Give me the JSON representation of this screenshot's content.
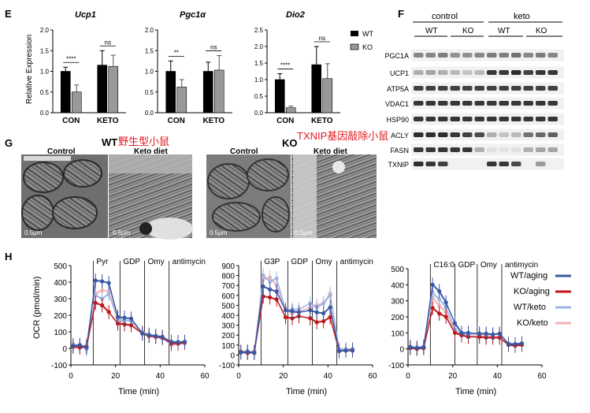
{
  "panel_labels": {
    "E": "E",
    "F": "F",
    "G": "G",
    "H": "H"
  },
  "colors": {
    "wt_bar": "#000000",
    "ko_bar": "#999999",
    "wt_aging": "#3a57a3",
    "ko_aging": "#c0161b",
    "wt_keto": "#9fb5e3",
    "ko_keto": "#f2b3b6",
    "annotation_red": "#e0191e"
  },
  "panel_e": {
    "ylabel": "Relative Expression",
    "legend": [
      "WT",
      "KO"
    ]
  },
  "panel_f": {
    "groups": [
      "control",
      "keto"
    ],
    "subgroups": [
      "WT",
      "KO",
      "WT",
      "KO"
    ],
    "proteins": [
      "PGC1A",
      "UCP1",
      "ATP5A",
      "VDAC1",
      "HSP90",
      "ACLY",
      "FASN",
      "TXNIP"
    ]
  },
  "panel_g": {
    "left": {
      "wt_label": "WT",
      "annotation": "野生型小鼠",
      "tiles": [
        "Control",
        "Keto diet"
      ]
    },
    "right": {
      "ko_label": "KO",
      "annotation": "TXNIP基因敲除小鼠",
      "tiles": [
        "Control",
        "Keto diet"
      ]
    },
    "scale": "0.5μm"
  },
  "panel_h": {
    "ylabel": "OCR (pmol/min)",
    "xlabel": "Time (min)",
    "legend": [
      "WT/aging",
      "KO/aging",
      "WT/keto",
      "KO/keto"
    ]
  },
  "chart_data": [
    {
      "type": "bar",
      "title": "Ucp1",
      "categories": [
        "CON",
        "KETO"
      ],
      "ylim": [
        0,
        2.0
      ],
      "yticks": [
        0,
        0.5,
        1.0,
        1.5,
        2.0
      ],
      "ytick_labels": [
        "0.0",
        "0.5",
        "1.0",
        "1.5",
        "2.0"
      ],
      "series": [
        {
          "name": "WT",
          "values": [
            1.0,
            1.15
          ],
          "errors": [
            0.1,
            0.35
          ]
        },
        {
          "name": "KO",
          "values": [
            0.5,
            1.12
          ],
          "errors": [
            0.17,
            0.27
          ]
        }
      ],
      "annotations": [
        "****",
        "ns"
      ]
    },
    {
      "type": "bar",
      "title": "Pgc1α",
      "categories": [
        "CON",
        "KETO"
      ],
      "ylim": [
        0,
        2.0
      ],
      "yticks": [
        0,
        0.5,
        1.0,
        1.5,
        2.0
      ],
      "ytick_labels": [
        "0.0",
        "0.5",
        "1.0",
        "1.5",
        "2.0"
      ],
      "series": [
        {
          "name": "WT",
          "values": [
            1.0,
            1.0
          ],
          "errors": [
            0.25,
            0.22
          ]
        },
        {
          "name": "KO",
          "values": [
            0.62,
            1.03
          ],
          "errors": [
            0.18,
            0.35
          ]
        }
      ],
      "annotations": [
        "**",
        "ns"
      ]
    },
    {
      "type": "bar",
      "title": "Dio2",
      "categories": [
        "CON",
        "KETO"
      ],
      "ylim": [
        0,
        2.5
      ],
      "yticks": [
        0,
        0.5,
        1.0,
        1.5,
        2.0,
        2.5
      ],
      "ytick_labels": [
        "0.0",
        "0.5",
        "1.0",
        "1.5",
        "2.0",
        "2.5"
      ],
      "series": [
        {
          "name": "WT",
          "values": [
            1.0,
            1.45
          ],
          "errors": [
            0.18,
            0.55
          ]
        },
        {
          "name": "KO",
          "values": [
            0.15,
            1.03
          ],
          "errors": [
            0.05,
            0.45
          ]
        }
      ],
      "annotations": [
        "****",
        "ns"
      ]
    },
    {
      "type": "line",
      "xlim": [
        0,
        60
      ],
      "ylim": [
        -100,
        500
      ],
      "xticks": [
        0,
        20,
        40,
        60
      ],
      "yticks": [
        -100,
        0,
        100,
        200,
        300,
        400,
        500
      ],
      "injections": [
        {
          "label": "Pyr",
          "x": 10
        },
        {
          "label": "GDP",
          "x": 22
        },
        {
          "label": "Omy",
          "x": 33
        },
        {
          "label": "antimycin",
          "x": 44
        }
      ],
      "x": [
        1,
        4,
        7,
        11,
        14,
        17,
        21,
        24,
        27,
        32,
        35,
        38,
        41,
        45,
        48,
        51
      ],
      "series": [
        {
          "name": "WT/aging",
          "values": [
            15,
            20,
            5,
            410,
            405,
            395,
            190,
            185,
            180,
            90,
            80,
            75,
            70,
            40,
            38,
            40
          ]
        },
        {
          "name": "KO/aging",
          "values": [
            10,
            5,
            10,
            275,
            260,
            220,
            150,
            145,
            140,
            90,
            75,
            70,
            65,
            30,
            30,
            35
          ]
        },
        {
          "name": "WT/keto",
          "values": [
            20,
            20,
            -5,
            320,
            300,
            330,
            175,
            170,
            165,
            95,
            85,
            70,
            60,
            25,
            30,
            35
          ]
        },
        {
          "name": "KO/keto",
          "values": [
            25,
            10,
            20,
            330,
            350,
            345,
            180,
            150,
            140,
            100,
            80,
            75,
            65,
            20,
            25,
            30
          ]
        }
      ]
    },
    {
      "type": "line",
      "xlim": [
        0,
        60
      ],
      "ylim": [
        -100,
        900
      ],
      "xticks": [
        0,
        20,
        40,
        60
      ],
      "yticks": [
        -100,
        0,
        100,
        200,
        300,
        400,
        500,
        600,
        700,
        800,
        900
      ],
      "injections": [
        {
          "label": "G3P",
          "x": 10
        },
        {
          "label": "GDP",
          "x": 22
        },
        {
          "label": "Omy",
          "x": 33
        },
        {
          "label": "antimycin",
          "x": 44
        }
      ],
      "x": [
        1,
        4,
        7,
        11,
        14,
        17,
        21,
        24,
        27,
        32,
        35,
        38,
        41,
        45,
        48,
        51
      ],
      "series": [
        {
          "name": "WT/aging",
          "values": [
            25,
            30,
            20,
            690,
            660,
            640,
            450,
            440,
            430,
            450,
            430,
            420,
            480,
            40,
            45,
            50
          ]
        },
        {
          "name": "KO/aging",
          "values": [
            30,
            20,
            25,
            590,
            580,
            560,
            380,
            370,
            390,
            370,
            330,
            340,
            380,
            40,
            45,
            45
          ]
        },
        {
          "name": "WT/keto",
          "values": [
            30,
            40,
            20,
            800,
            740,
            770,
            450,
            460,
            460,
            520,
            480,
            520,
            600,
            60,
            55,
            60
          ]
        },
        {
          "name": "KO/keto",
          "values": [
            35,
            30,
            40,
            760,
            780,
            700,
            470,
            420,
            440,
            480,
            500,
            520,
            620,
            60,
            60,
            60
          ]
        }
      ]
    },
    {
      "type": "line",
      "xlim": [
        0,
        60
      ],
      "ylim": [
        -100,
        500
      ],
      "xticks": [
        0,
        20,
        40,
        60
      ],
      "yticks": [
        -100,
        0,
        100,
        200,
        300,
        400,
        500
      ],
      "injections": [
        {
          "label": "C16:0",
          "x": 10
        },
        {
          "label": "GDP",
          "x": 21
        },
        {
          "label": "Omy",
          "x": 31
        },
        {
          "label": "antimycin",
          "x": 42
        }
      ],
      "x": [
        1,
        4,
        7,
        11,
        14,
        17,
        21,
        24,
        27,
        32,
        35,
        38,
        41,
        45,
        48,
        51
      ],
      "series": [
        {
          "name": "WT/aging",
          "values": [
            10,
            5,
            10,
            400,
            360,
            290,
            160,
            100,
            100,
            95,
            95,
            90,
            95,
            30,
            30,
            35
          ]
        },
        {
          "name": "KO/aging",
          "values": [
            5,
            0,
            5,
            255,
            220,
            200,
            100,
            85,
            75,
            75,
            70,
            70,
            70,
            25,
            20,
            25
          ]
        },
        {
          "name": "WT/keto",
          "values": [
            15,
            10,
            15,
            350,
            310,
            260,
            120,
            90,
            90,
            95,
            90,
            90,
            95,
            35,
            30,
            30
          ]
        },
        {
          "name": "KO/keto",
          "values": [
            10,
            5,
            15,
            320,
            270,
            230,
            110,
            85,
            80,
            80,
            80,
            75,
            75,
            25,
            25,
            30
          ]
        }
      ]
    }
  ]
}
